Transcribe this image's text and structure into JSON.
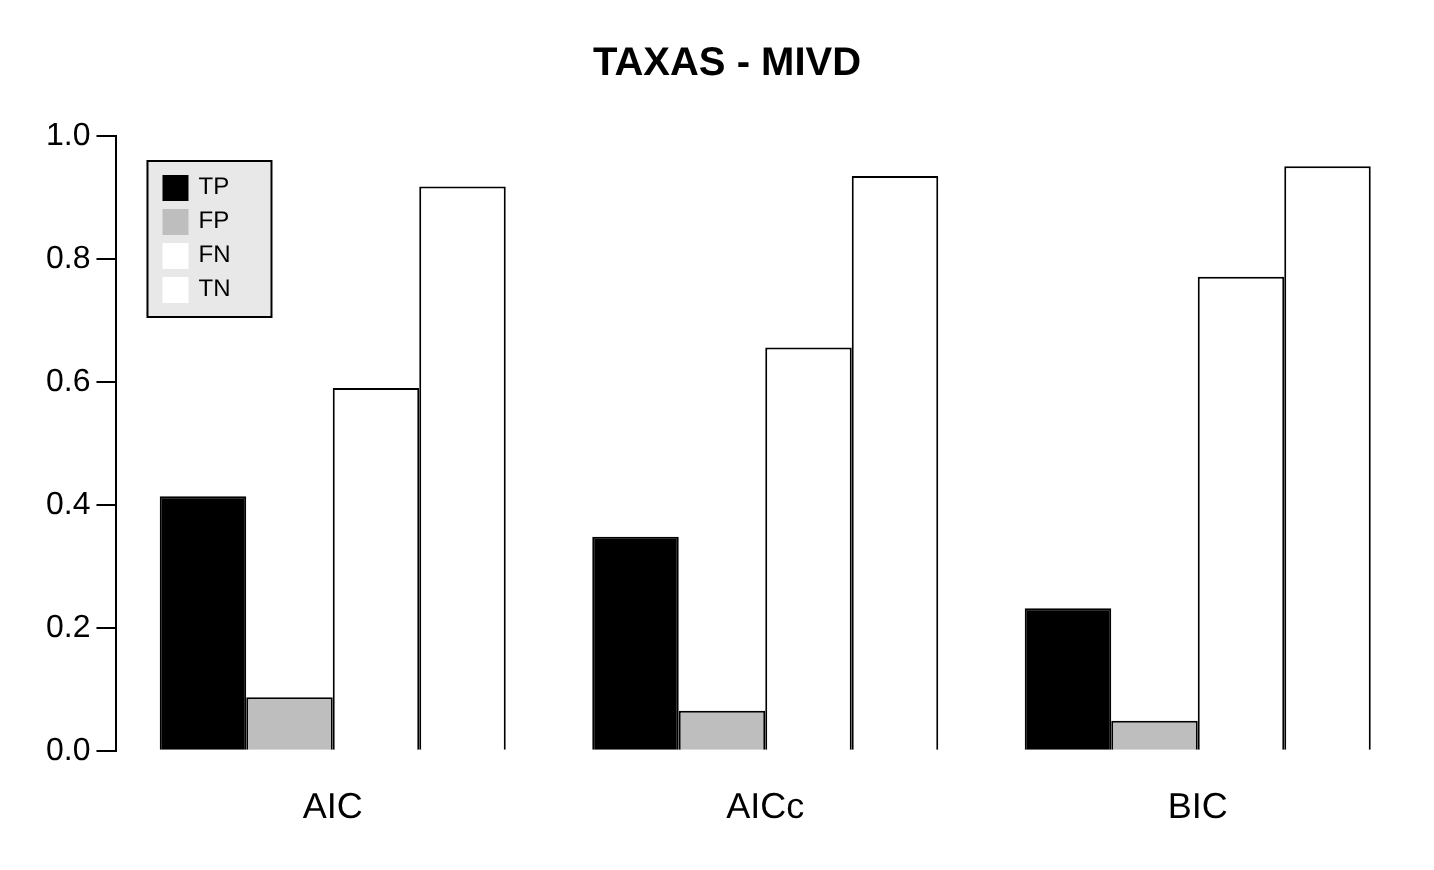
{
  "chart_data": {
    "type": "bar",
    "title": "TAXAS - MIVD",
    "categories": [
      "AIC",
      "AICc",
      "BIC"
    ],
    "series": [
      {
        "name": "TP",
        "color": "#000000",
        "values": [
          0.414,
          0.348,
          0.232
        ]
      },
      {
        "name": "FP",
        "color": "#bebebe",
        "values": [
          0.087,
          0.065,
          0.049
        ]
      },
      {
        "name": "FN",
        "color": "#ffffff",
        "values": [
          0.59,
          0.656,
          0.771
        ]
      },
      {
        "name": "TN",
        "color": "#ffffff",
        "values": [
          0.918,
          0.935,
          0.951
        ]
      }
    ],
    "ylim": [
      0,
      1
    ],
    "yticks": [
      {
        "value": 0,
        "label": "0.0"
      },
      0.2,
      0.4,
      0.6,
      0.8,
      {
        "value": 1,
        "label": "1.0"
      }
    ],
    "grid": false,
    "legend": "top left"
  }
}
